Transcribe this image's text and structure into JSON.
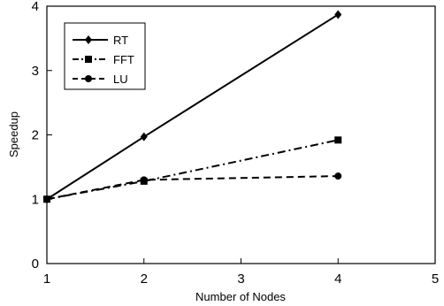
{
  "chart_data": {
    "type": "line",
    "title": "",
    "xlabel": "Number of Nodes",
    "ylabel": "Speedup",
    "xlim": [
      1,
      5
    ],
    "ylim": [
      0,
      4
    ],
    "xticks": [
      1,
      2,
      3,
      4,
      5
    ],
    "yticks": [
      0,
      1,
      2,
      3,
      4
    ],
    "grid": false,
    "legend_position": "top-left",
    "series": [
      {
        "name": "RT",
        "marker": "diamond",
        "line_style": "solid",
        "color": "#000000",
        "x": [
          1,
          2,
          4
        ],
        "y": [
          1.0,
          1.97,
          3.87
        ]
      },
      {
        "name": "FFT",
        "marker": "square",
        "line_style": "dash-dot",
        "color": "#000000",
        "x": [
          1,
          2,
          4
        ],
        "y": [
          1.0,
          1.28,
          1.92
        ]
      },
      {
        "name": "LU",
        "marker": "circle",
        "line_style": "dashed",
        "color": "#000000",
        "x": [
          1,
          2,
          4
        ],
        "y": [
          1.0,
          1.3,
          1.36
        ]
      }
    ]
  }
}
